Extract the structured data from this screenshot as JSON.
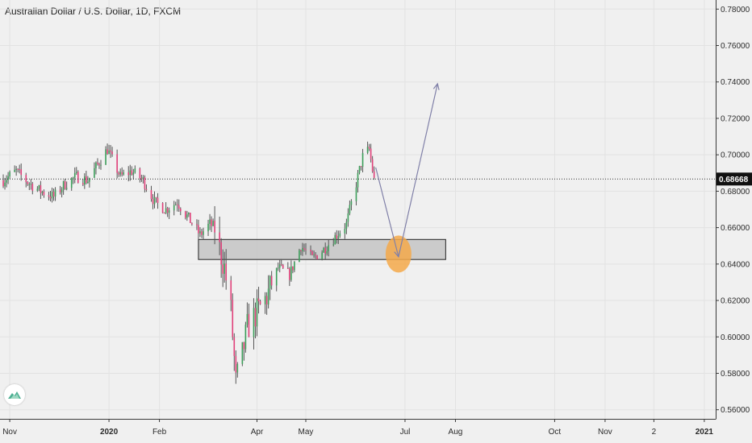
{
  "chart_data": {
    "type": "candlestick",
    "title": "Australian Dollar / U.S. Dollar, 1D, FXCM",
    "ylim": [
      0.555,
      0.785
    ],
    "y_ticks": [
      "0.78000",
      "0.76000",
      "0.74000",
      "0.72000",
      "0.70000",
      "0.68000",
      "0.66000",
      "0.64000",
      "0.62000",
      "0.60000",
      "0.58000",
      "0.56000"
    ],
    "x_ticks": [
      {
        "label": "Nov",
        "date": "2019-11-01",
        "bold": false
      },
      {
        "label": "2020",
        "date": "2020-01-01",
        "bold": true
      },
      {
        "label": "Feb",
        "date": "2020-02-01",
        "bold": false
      },
      {
        "label": "Apr",
        "date": "2020-04-01",
        "bold": false
      },
      {
        "label": "May",
        "date": "2020-05-01",
        "bold": false
      },
      {
        "label": "Jul",
        "date": "2020-07-01",
        "bold": false
      },
      {
        "label": "Aug",
        "date": "2020-08-01",
        "bold": false
      },
      {
        "label": "Oct",
        "date": "2020-10-01",
        "bold": false
      },
      {
        "label": "Nov",
        "date": "2020-11-01",
        "bold": false
      },
      {
        "label": "2",
        "date": "2020-12-01",
        "bold": false
      },
      {
        "label": "2021",
        "date": "2021-01-01",
        "bold": true
      }
    ],
    "x_range": [
      "2019-10-26",
      "2021-01-08"
    ],
    "last_price": "0.68668",
    "last_price_value": 0.68668,
    "colors": {
      "up": "#3c9e5a",
      "down": "#e0407a",
      "wick": "#555555",
      "badge": "#111111"
    },
    "close_path": [
      [
        "2019-10-28",
        0.686
      ],
      [
        "2019-11-05",
        0.691
      ],
      [
        "2019-11-12",
        0.685
      ],
      [
        "2019-11-20",
        0.68
      ],
      [
        "2019-11-28",
        0.677
      ],
      [
        "2019-12-05",
        0.684
      ],
      [
        "2019-12-12",
        0.688
      ],
      [
        "2019-12-19",
        0.686
      ],
      [
        "2019-12-26",
        0.696
      ],
      [
        "2019-12-31",
        0.703
      ],
      [
        "2020-01-08",
        0.688
      ],
      [
        "2020-01-15",
        0.691
      ],
      [
        "2020-01-22",
        0.686
      ],
      [
        "2020-01-29",
        0.674
      ],
      [
        "2020-02-05",
        0.67
      ],
      [
        "2020-02-12",
        0.674
      ],
      [
        "2020-02-19",
        0.665
      ],
      [
        "2020-02-26",
        0.656
      ],
      [
        "2020-03-03",
        0.662
      ],
      [
        "2020-03-06",
        0.66
      ],
      [
        "2020-03-09",
        0.648
      ],
      [
        "2020-03-12",
        0.638
      ],
      [
        "2020-03-16",
        0.614
      ],
      [
        "2020-03-19",
        0.575
      ],
      [
        "2020-03-23",
        0.59
      ],
      [
        "2020-03-26",
        0.605
      ],
      [
        "2020-03-31",
        0.612
      ],
      [
        "2020-04-07",
        0.622
      ],
      [
        "2020-04-14",
        0.638
      ],
      [
        "2020-04-21",
        0.634
      ],
      [
        "2020-04-28",
        0.65
      ],
      [
        "2020-05-05",
        0.643
      ],
      [
        "2020-05-12",
        0.648
      ],
      [
        "2020-05-19",
        0.655
      ],
      [
        "2020-05-26",
        0.662
      ],
      [
        "2020-06-02",
        0.688
      ],
      [
        "2020-06-05",
        0.699
      ],
      [
        "2020-06-09",
        0.703
      ],
      [
        "2020-06-12",
        0.686
      ]
    ],
    "annotations": {
      "support_zone": {
        "date_from": "2020-02-25",
        "date_to": "2020-07-26",
        "y_low": 0.6425,
        "y_high": 0.6535,
        "fill": "#c4c4c4"
      },
      "target_circle": {
        "date": "2020-06-27",
        "y": 0.6455,
        "fill": "#f5a94a"
      },
      "projection_path": [
        [
          "2020-06-13",
          0.693
        ],
        [
          "2020-06-27",
          0.644
        ],
        [
          "2020-07-21",
          0.739
        ]
      ],
      "projection_color": "#8080a8"
    }
  }
}
